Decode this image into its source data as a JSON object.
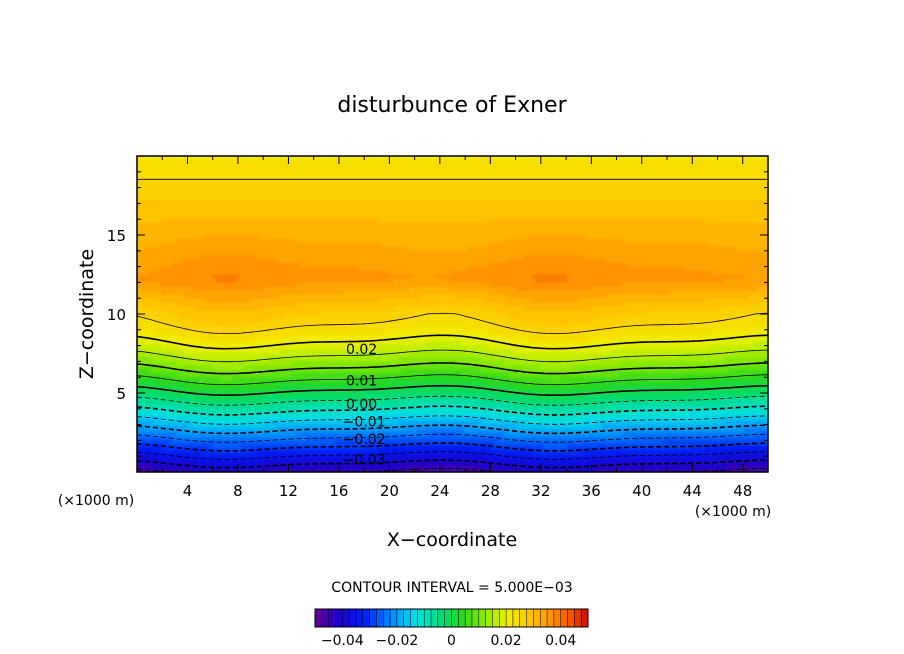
{
  "chart_data": {
    "type": "contour",
    "title": "disturbunce of Exner",
    "xlabel": "X−coordinate",
    "ylabel": "Z−coordinate",
    "x_unit_label": "(×1000 m)",
    "x_unit_label_right": "(×1000 m)",
    "xlim": [
      0,
      50
    ],
    "ylim": [
      0,
      20
    ],
    "x_ticks": [
      4,
      8,
      12,
      16,
      20,
      24,
      28,
      32,
      36,
      40,
      44,
      48
    ],
    "y_ticks": [
      5,
      10,
      15
    ],
    "x_tick_labels": [
      "4",
      "8",
      "12",
      "16",
      "20",
      "24",
      "28",
      "32",
      "36",
      "40",
      "44",
      "48"
    ],
    "y_tick_labels": [
      "5",
      "10",
      "15"
    ],
    "contour_interval_text": "CONTOUR INTERVAL = 5.000E−03",
    "contour_labels": [
      {
        "text": "0.02",
        "value": 0.02,
        "x": 17.8,
        "z": 7.8
      },
      {
        "text": "0.01",
        "value": 0.01,
        "x": 17.8,
        "z": 5.8
      },
      {
        "text": "0.00",
        "value": 0.0,
        "x": 17.8,
        "z": 4.3
      },
      {
        "text": "−0.01",
        "value": -0.01,
        "x": 18.0,
        "z": 3.2
      },
      {
        "text": "−0.02",
        "value": -0.02,
        "x": 18.0,
        "z": 2.1
      },
      {
        "text": "−0.03",
        "value": -0.03,
        "x": 18.0,
        "z": 0.8
      }
    ],
    "field_description": {
      "surface_value": -0.045,
      "peak_value": 0.036,
      "peak_height_km": 12.2,
      "top_value": 0.022
    },
    "colorbar": {
      "range": [
        -0.05,
        0.05
      ],
      "ticks": [
        -0.04,
        -0.02,
        0,
        0.02,
        0.04
      ],
      "tick_labels": [
        "−0.04",
        "−0.02",
        "0",
        "0.02",
        "0.04"
      ]
    }
  }
}
